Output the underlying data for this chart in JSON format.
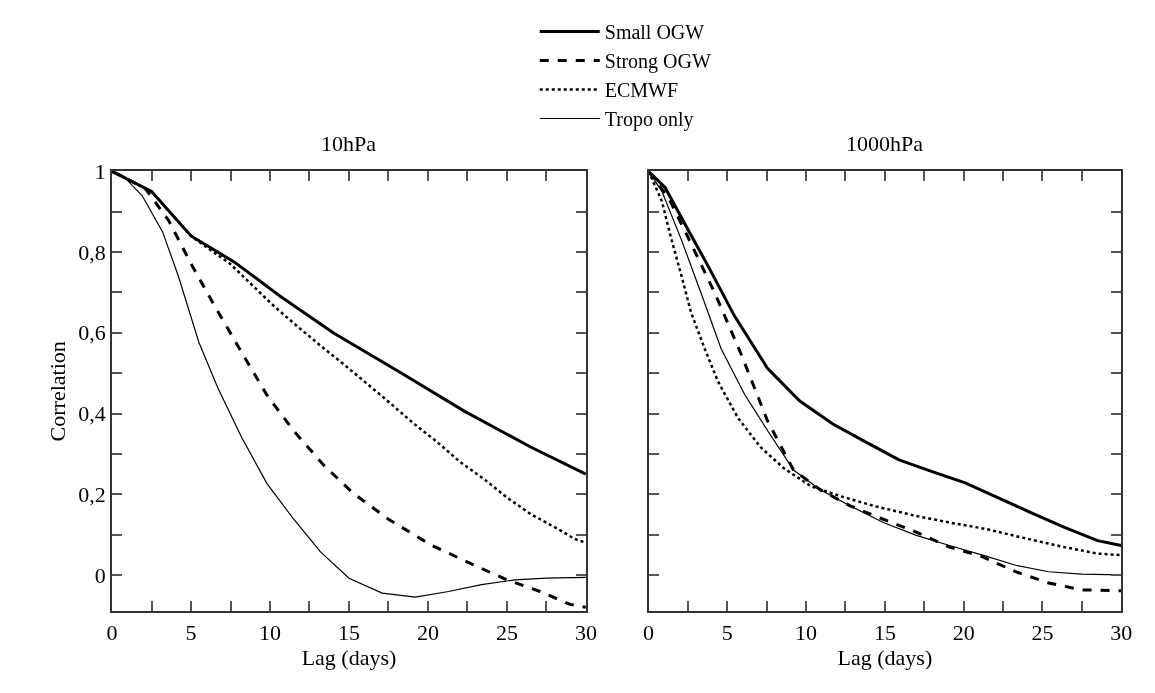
{
  "chart_data": [
    {
      "type": "line",
      "title": "10hPa",
      "xlabel": "Lag (days)",
      "ylabel": "Correlation",
      "xlim": [
        0,
        30
      ],
      "ylim": [
        -0.09,
        1
      ],
      "xticks": [
        0,
        {
          "value": 2.5,
          "label": null
        },
        5,
        {
          "value": 7.5,
          "label": null
        },
        10,
        {
          "value": 12.5,
          "label": null
        },
        15,
        {
          "value": 17.5,
          "label": null
        },
        20,
        {
          "value": 22.5,
          "label": null
        },
        25,
        {
          "value": 27.5,
          "label": null
        },
        30
      ],
      "yticks": [
        0,
        {
          "value": 0.1,
          "label": null
        },
        {
          "value": 0.2,
          "label": "0,2"
        },
        {
          "value": 0.3,
          "label": null
        },
        {
          "value": 0.4,
          "label": "0,4"
        },
        {
          "value": 0.5,
          "label": null
        },
        {
          "value": 0.6,
          "label": "0,6"
        },
        {
          "value": 0.7,
          "label": null
        },
        {
          "value": 0.8,
          "label": "0,8"
        },
        {
          "value": 0.9,
          "label": null
        },
        1
      ],
      "legend": "top",
      "marker": "none",
      "series": [
        {
          "name": "Small OGW",
          "color": "#000000",
          "line_style": "solid",
          "x": [
            0,
            2.5,
            5,
            7.75,
            10.67,
            14,
            18.2,
            22.3,
            26.5,
            30
          ],
          "values": [
            1,
            0.95,
            0.84,
            0.775,
            0.69,
            0.6,
            0.503,
            0.406,
            0.317,
            0.25
          ]
        },
        {
          "name": "Strong OGW",
          "color": "#000000",
          "line_style": "dashed",
          "x": [
            0,
            2.1,
            3.6,
            5,
            6.5,
            8.2,
            9.8,
            11.5,
            13.4,
            15.25,
            17.5,
            20.25,
            23.4,
            25,
            27.1,
            29,
            30
          ],
          "values": [
            1,
            0.958,
            0.877,
            0.771,
            0.666,
            0.552,
            0.446,
            0.357,
            0.272,
            0.203,
            0.138,
            0.073,
            0.016,
            -0.012,
            -0.041,
            -0.073,
            -0.08
          ]
        },
        {
          "name": "ECMWF",
          "color": "#000000",
          "line_style": "dotted",
          "x": [
            0,
            2.5,
            5,
            7.5,
            10.25,
            11.7,
            13.2,
            14.7,
            16.2,
            17.6,
            19.1,
            20.6,
            22,
            23.6,
            25,
            26.5,
            28.4,
            29.3,
            30
          ],
          "values": [
            1,
            0.95,
            0.84,
            0.77,
            0.666,
            0.617,
            0.568,
            0.521,
            0.472,
            0.426,
            0.375,
            0.329,
            0.281,
            0.236,
            0.192,
            0.151,
            0.11,
            0.089,
            0.08
          ]
        },
        {
          "name": "Tropo only",
          "color": "#000000",
          "line_style": "solid",
          "x": [
            0,
            0.67,
            1.9,
            3.2,
            4.2,
            5.5,
            6.7,
            8.2,
            9.8,
            11.5,
            13.2,
            15,
            17.1,
            19.2,
            21.3,
            23.4,
            25.5,
            27.5,
            30
          ],
          "values": [
            1,
            0.99,
            0.94,
            0.85,
            0.74,
            0.576,
            0.463,
            0.341,
            0.227,
            0.138,
            0.057,
            -0.008,
            -0.045,
            -0.055,
            -0.041,
            -0.024,
            -0.012,
            -0.008,
            -0.006
          ]
        }
      ]
    },
    {
      "type": "line",
      "title": "1000hPa",
      "xlabel": "Lag (days)",
      "xlim": [
        0,
        30
      ],
      "ylim": [
        -0.09,
        1
      ],
      "tick_labels": "x",
      "xticks": [
        0,
        {
          "value": 2.5,
          "label": null
        },
        5,
        {
          "value": 7.5,
          "label": null
        },
        10,
        {
          "value": 12.5,
          "label": null
        },
        15,
        {
          "value": 17.5,
          "label": null
        },
        20,
        {
          "value": 22.5,
          "label": null
        },
        25,
        {
          "value": 27.5,
          "label": null
        },
        30
      ],
      "yticks": [
        {
          "value": 0,
          "label": null
        },
        {
          "value": 0.1,
          "label": null
        },
        {
          "value": 0.2,
          "label": null
        },
        {
          "value": 0.3,
          "label": null
        },
        {
          "value": 0.4,
          "label": null
        },
        {
          "value": 0.5,
          "label": null
        },
        {
          "value": 0.6,
          "label": null
        },
        {
          "value": 0.7,
          "label": null
        },
        {
          "value": 0.8,
          "label": null
        },
        {
          "value": 0.9,
          "label": null
        },
        {
          "value": 1,
          "label": null
        }
      ],
      "marker": "none",
      "series": [
        {
          "color": "#000000",
          "line_style": "solid",
          "x": [
            0,
            1.05,
            2.3,
            3.8,
            5.45,
            7.55,
            9.6,
            11.7,
            13.8,
            15.9,
            18,
            20.1,
            22.2,
            24.3,
            26.4,
            28.5,
            30
          ],
          "values": [
            1,
            0.96,
            0.87,
            0.764,
            0.642,
            0.512,
            0.431,
            0.374,
            0.329,
            0.285,
            0.256,
            0.228,
            0.191,
            0.154,
            0.118,
            0.085,
            0.073
          ]
        },
        {
          "color": "#000000",
          "line_style": "dashed",
          "x": [
            0,
            1.26,
            2.5,
            4.2,
            5.9,
            7.55,
            9.2,
            10.9,
            12.8,
            14.9,
            17,
            19.1,
            21.2,
            23.3,
            25.4,
            27.5,
            30
          ],
          "values": [
            1,
            0.935,
            0.837,
            0.699,
            0.545,
            0.382,
            0.26,
            0.211,
            0.171,
            0.138,
            0.106,
            0.069,
            0.045,
            0.008,
            -0.02,
            -0.037,
            -0.039
          ]
        },
        {
          "color": "#000000",
          "line_style": "dotted",
          "x": [
            0,
            0.84,
            1.47,
            2.1,
            2.7,
            3.56,
            4.4,
            5.66,
            7.1,
            8.6,
            10.3,
            12.2,
            14.3,
            17,
            19.1,
            21.4,
            24.1,
            26.4,
            28.5,
            30
          ],
          "values": [
            1,
            0.927,
            0.829,
            0.74,
            0.65,
            0.561,
            0.48,
            0.39,
            0.317,
            0.264,
            0.22,
            0.195,
            0.171,
            0.146,
            0.13,
            0.114,
            0.089,
            0.069,
            0.053,
            0.049
          ]
        },
        {
          "color": "#000000",
          "line_style": "solid",
          "x": [
            0,
            0.84,
            2.1,
            3.4,
            4.6,
            6.1,
            7.55,
            9.2,
            10.9,
            12.8,
            14.9,
            17,
            19.1,
            21.2,
            23.3,
            25.4,
            27.5,
            30
          ],
          "values": [
            1,
            0.951,
            0.829,
            0.691,
            0.561,
            0.447,
            0.358,
            0.26,
            0.211,
            0.171,
            0.13,
            0.098,
            0.073,
            0.049,
            0.024,
            0.008,
            0.002,
            0
          ]
        }
      ]
    }
  ]
}
